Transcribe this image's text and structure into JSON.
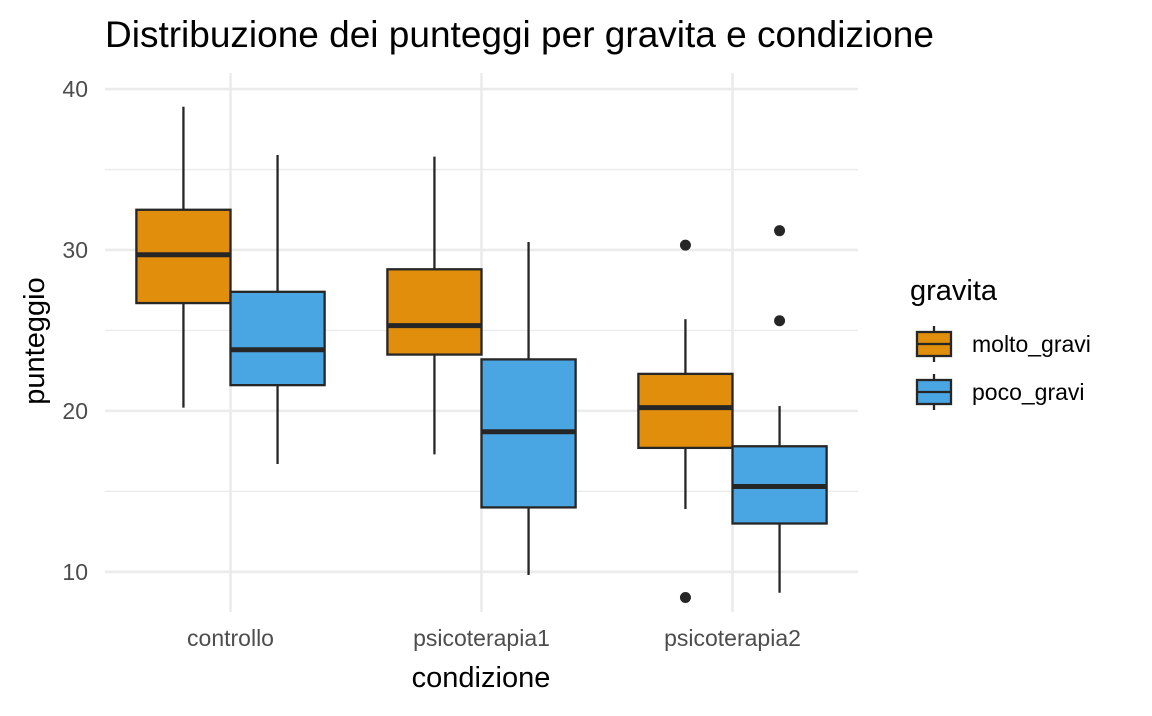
{
  "chart_data": {
    "type": "boxplot",
    "title": "Distribuzione dei punteggi per gravita e condizione",
    "xlabel": "condizione",
    "ylabel": "punteggio",
    "categories": [
      "controllo",
      "psicoterapia1",
      "psicoterapia2"
    ],
    "ylim": [
      7.5,
      41
    ],
    "yticks": [
      10,
      20,
      30,
      40
    ],
    "grid": true,
    "legend": {
      "title": "gravita",
      "position": "right"
    },
    "series": [
      {
        "name": "molto_gravi",
        "color": "#E08E0B",
        "boxes": [
          {
            "category": "controllo",
            "min": 20.2,
            "q1": 26.7,
            "median": 29.7,
            "q3": 32.5,
            "max": 38.9,
            "outliers": []
          },
          {
            "category": "psicoterapia1",
            "min": 17.3,
            "q1": 23.5,
            "median": 25.3,
            "q3": 28.8,
            "max": 35.8,
            "outliers": []
          },
          {
            "category": "psicoterapia2",
            "min": 13.9,
            "q1": 17.7,
            "median": 20.2,
            "q3": 22.3,
            "max": 25.7,
            "outliers": [
              30.3,
              8.4
            ]
          }
        ]
      },
      {
        "name": "poco_gravi",
        "color": "#4AA6E3",
        "boxes": [
          {
            "category": "controllo",
            "min": 16.7,
            "q1": 21.6,
            "median": 23.8,
            "q3": 27.4,
            "max": 35.9,
            "outliers": []
          },
          {
            "category": "psicoterapia1",
            "min": 9.8,
            "q1": 14.0,
            "median": 18.7,
            "q3": 23.2,
            "max": 30.5,
            "outliers": []
          },
          {
            "category": "psicoterapia2",
            "min": 8.7,
            "q1": 13.0,
            "median": 15.3,
            "q3": 17.8,
            "max": 20.3,
            "outliers": [
              31.2,
              25.6
            ]
          }
        ]
      }
    ]
  }
}
